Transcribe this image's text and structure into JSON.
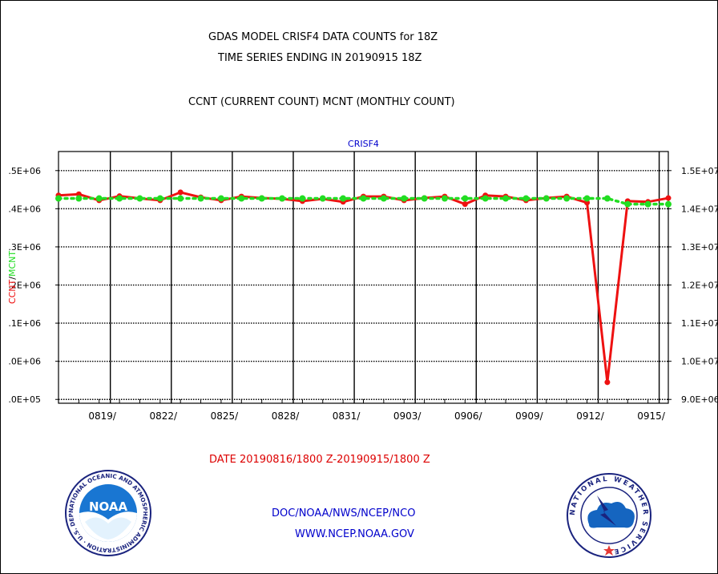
{
  "title_line1": "GDAS MODEL CRISF4 DATA COUNTS for 18Z",
  "title_line2": "TIME SERIES ENDING IN 20190915 18Z",
  "subtitle": "CCNT (CURRENT COUNT) MCNT (MONTHLY COUNT)",
  "date_range": "DATE 20190816/1800 Z-20190915/1800 Z",
  "footer_org": "DOC/NOAA/NWS/NCEP/NCO",
  "footer_url": "WWW.NCEP.NOAA.GOV",
  "logos": {
    "noaa_text": "NOAA",
    "noaa_ring": "NATIONAL OCEANIC AND ATMOSPHERIC ADMINISTRATION · U.S. DEPARTMENT OF COMMERCE ·",
    "nws_ring": "NATIONAL WEATHER SERVICE"
  },
  "colors": {
    "ccnt": "#ee1111",
    "mcnt": "#22dd22",
    "panel_title": "#0000cc",
    "footer": "#0000cc",
    "date": "#dd0000"
  },
  "chart_data": {
    "type": "line",
    "title": "CRISF4",
    "ylabel_left": "CCNT",
    "ylabel_left_sep": "/",
    "ylabel_right": "MCNT",
    "x_ticks": [
      "0819/",
      "0822/",
      "0825/",
      "0828/",
      "0831/",
      "0903/",
      "0906/",
      "0909/",
      "0912/",
      "0915/"
    ],
    "xlim": [
      0,
      30
    ],
    "ylim": [
      8900000.0,
      15500000.0
    ],
    "y_ticks_left": [
      ".0E+05",
      ".0E+06",
      ".1E+06",
      ".2E+06",
      ".3E+06",
      ".4E+06",
      ".5E+06"
    ],
    "y_ticks_right": [
      "9.0E+06",
      "1.0E+07",
      "1.1E+07",
      "1.2E+07",
      "1.3E+07",
      "1.4E+07",
      "1.5E+07"
    ],
    "y_tick_values": [
      9000000.0,
      10000000.0,
      11000000.0,
      12000000.0,
      13000000.0,
      14000000.0,
      15000000.0
    ],
    "grid": true,
    "series": [
      {
        "name": "CCNT",
        "color": "#ee1111",
        "x": [
          0,
          1,
          2,
          3,
          4,
          5,
          6,
          7,
          8,
          9,
          10,
          11,
          12,
          13,
          14,
          15,
          16,
          17,
          18,
          19,
          20,
          21,
          22,
          23,
          24,
          25,
          26,
          27,
          28,
          29,
          30
        ],
        "y": [
          14350000.0,
          14380000.0,
          14220000.0,
          14330000.0,
          14270000.0,
          14220000.0,
          14430000.0,
          14300000.0,
          14220000.0,
          14320000.0,
          14280000.0,
          14260000.0,
          14200000.0,
          14260000.0,
          14180000.0,
          14320000.0,
          14320000.0,
          14220000.0,
          14280000.0,
          14320000.0,
          14120000.0,
          14350000.0,
          14320000.0,
          14220000.0,
          14280000.0,
          14320000.0,
          14160000.0,
          9450000.0,
          14200000.0,
          14180000.0,
          14280000.0
        ]
      },
      {
        "name": "MCNT",
        "color": "#22dd22",
        "x": [
          0,
          1,
          2,
          3,
          4,
          5,
          6,
          7,
          8,
          9,
          10,
          11,
          12,
          13,
          14,
          15,
          16,
          17,
          18,
          19,
          20,
          21,
          22,
          23,
          24,
          25,
          26,
          27,
          28,
          29,
          30
        ],
        "y": [
          14270000.0,
          14270000.0,
          14270000.0,
          14270000.0,
          14270000.0,
          14270000.0,
          14270000.0,
          14270000.0,
          14270000.0,
          14270000.0,
          14270000.0,
          14270000.0,
          14270000.0,
          14270000.0,
          14270000.0,
          14270000.0,
          14270000.0,
          14270000.0,
          14270000.0,
          14270000.0,
          14270000.0,
          14270000.0,
          14270000.0,
          14270000.0,
          14270000.0,
          14270000.0,
          14270000.0,
          14270000.0,
          14120000.0,
          14120000.0,
          14120000.0
        ]
      }
    ]
  }
}
